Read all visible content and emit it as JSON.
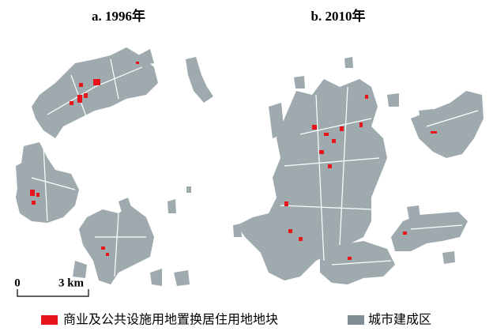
{
  "panels": [
    {
      "title": "a. 1996年"
    },
    {
      "title": "b. 2010年"
    }
  ],
  "scale_bar": {
    "start": "0",
    "end": "3 km"
  },
  "legend": [
    {
      "label": "商业及公共设施用地置换居住用地地块",
      "color": "#e8141b"
    },
    {
      "label": "城市建成区",
      "color": "#7f8e94"
    }
  ]
}
